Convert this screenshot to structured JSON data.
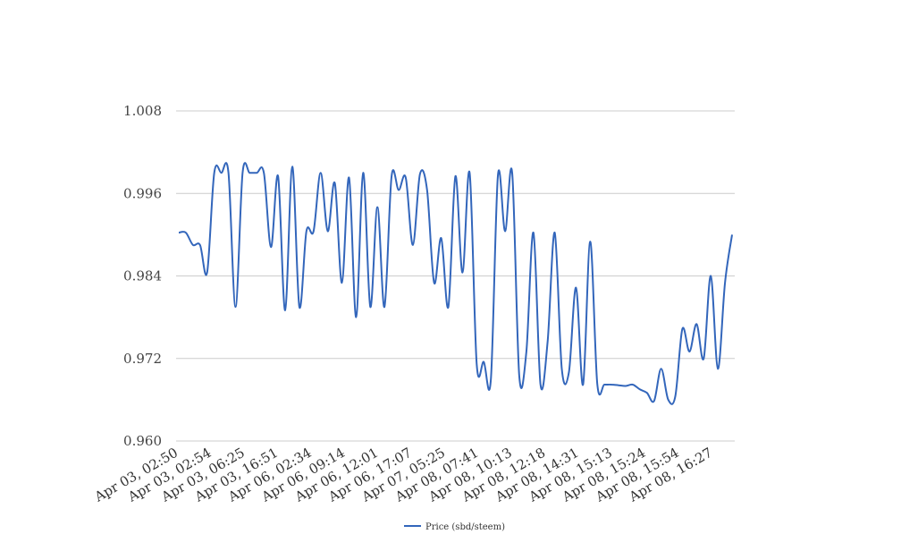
{
  "chart_data": {
    "type": "line",
    "title": "",
    "xlabel": "",
    "ylabel": "",
    "ylim": [
      0.96,
      1.008
    ],
    "yticks": [
      "1.008",
      "0.996",
      "0.984",
      "0.972",
      "0.960"
    ],
    "ytick_values": [
      1.008,
      0.996,
      0.984,
      0.972,
      0.96
    ],
    "grid": "horizontal",
    "legend_position": "bottom-center",
    "color": "#3366bb",
    "x_tick_labels": [
      "Apr 03, 02:50",
      "Apr 03, 02:54",
      "Apr 03, 06:25",
      "Apr 03, 16:51",
      "Apr 06, 02:34",
      "Apr 06, 09:14",
      "Apr 06, 12:01",
      "Apr 06, 17:07",
      "Apr 07, 05:25",
      "Apr 08, 07:41",
      "Apr 08, 10:13",
      "Apr 08, 12:18",
      "Apr 08, 14:31",
      "Apr 08, 15:13",
      "Apr 08, 15:24",
      "Apr 08, 15:54",
      "Apr 08, 16:27"
    ],
    "series": [
      {
        "name": "Price (sbd/steem)",
        "values": [
          0.9903,
          0.9903,
          0.9885,
          0.9885,
          0.9845,
          0.999,
          0.999,
          0.999,
          0.9795,
          0.999,
          0.999,
          0.999,
          0.999,
          0.9882,
          0.9985,
          0.979,
          0.9999,
          0.9795,
          0.9905,
          0.9905,
          0.999,
          0.9905,
          0.9975,
          0.983,
          0.9983,
          0.978,
          0.999,
          0.9795,
          0.994,
          0.9795,
          0.9985,
          0.9965,
          0.9983,
          0.9885,
          0.9988,
          0.9965,
          0.983,
          0.9895,
          0.9795,
          0.9985,
          0.9845,
          0.999,
          0.9712,
          0.9715,
          0.969,
          0.9987,
          0.9905,
          0.999,
          0.9695,
          0.973,
          0.9903,
          0.9682,
          0.9745,
          0.9903,
          0.9705,
          0.97,
          0.9823,
          0.9682,
          0.989,
          0.9683,
          0.9682,
          0.9682,
          0.9681,
          0.968,
          0.9682,
          0.9675,
          0.967,
          0.9658,
          0.9705,
          0.966,
          0.9665,
          0.9763,
          0.973,
          0.977,
          0.972,
          0.984,
          0.9705,
          0.983,
          0.99
        ]
      }
    ]
  }
}
